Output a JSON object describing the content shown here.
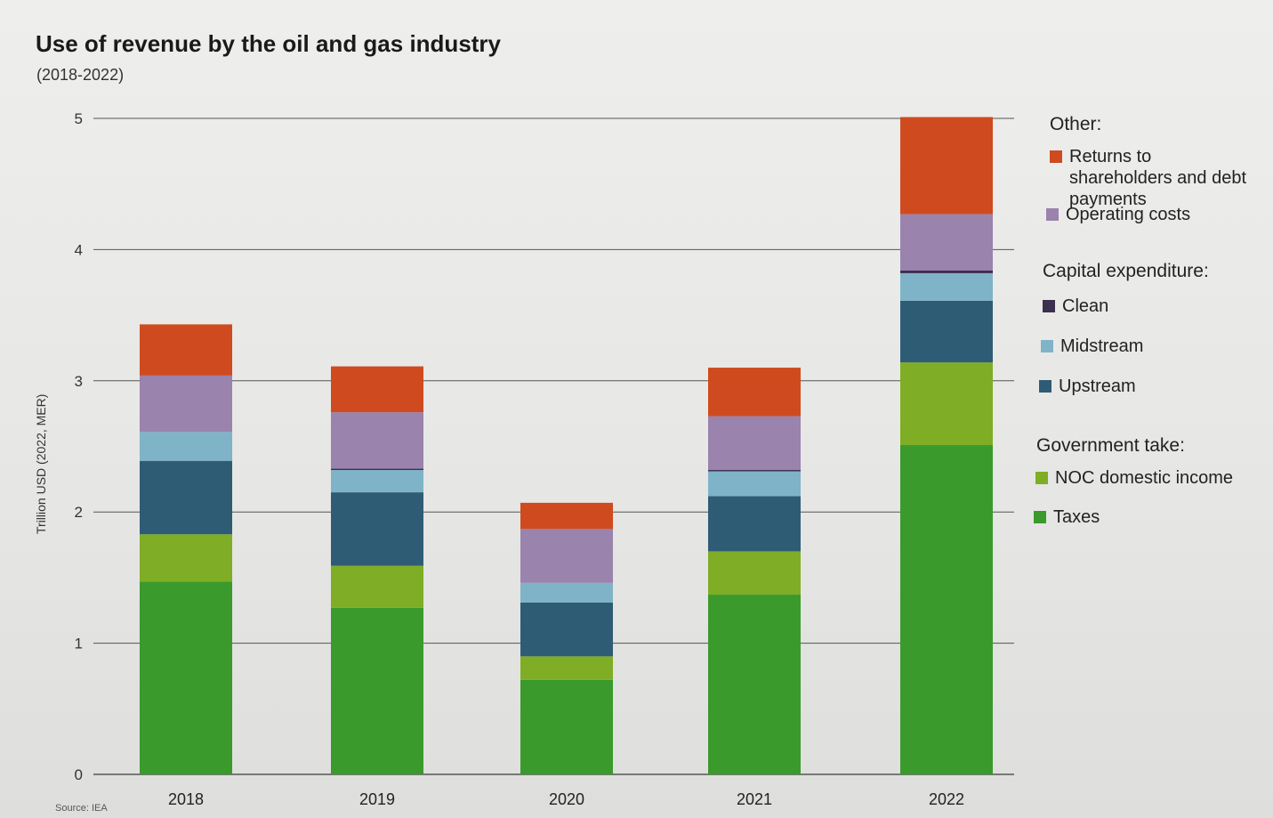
{
  "header": {
    "title": "Use of revenue by the oil and gas industry",
    "subtitle": "(2018-2022)"
  },
  "source": "Source: IEA",
  "legend": {
    "groups": [
      {
        "title": "Other:",
        "items": [
          "Returns to shareholders and debt payments",
          "Operating costs"
        ]
      },
      {
        "title": "Capital expenditure:",
        "items": [
          "Clean",
          "Midstream",
          "Upstream"
        ]
      },
      {
        "title": "Government take:",
        "items": [
          "NOC domestic income",
          "Taxes"
        ]
      }
    ]
  },
  "colors": {
    "Taxes": "#3a9a2c",
    "NOC domestic income": "#7fad26",
    "Upstream": "#2f5c75",
    "Midstream": "#7fb3c8",
    "Clean": "#3d2f4f",
    "Operating costs": "#9a83ad",
    "Returns to shareholders and debt payments": "#cf4b1f"
  },
  "chart_data": {
    "type": "bar",
    "stacked": true,
    "title": "Use of revenue by the oil and gas industry",
    "subtitle": "(2018-2022)",
    "xlabel": "",
    "ylabel": "Trillion USD (2022, MER)",
    "ylim": [
      0,
      5
    ],
    "yticks": [
      0,
      1,
      2,
      3,
      4,
      5
    ],
    "categories": [
      "2018",
      "2019",
      "2020",
      "2021",
      "2022"
    ],
    "series": [
      {
        "name": "Taxes",
        "values": [
          1.47,
          1.27,
          0.72,
          1.37,
          2.51
        ]
      },
      {
        "name": "NOC domestic income",
        "values": [
          0.36,
          0.32,
          0.18,
          0.33,
          0.63
        ]
      },
      {
        "name": "Upstream",
        "values": [
          0.56,
          0.56,
          0.41,
          0.42,
          0.47
        ]
      },
      {
        "name": "Midstream",
        "values": [
          0.22,
          0.17,
          0.15,
          0.19,
          0.21
        ]
      },
      {
        "name": "Clean",
        "values": [
          0.0,
          0.01,
          0.0,
          0.01,
          0.02
        ]
      },
      {
        "name": "Operating costs",
        "values": [
          0.43,
          0.43,
          0.41,
          0.41,
          0.43
        ]
      },
      {
        "name": "Returns to shareholders and debt payments",
        "values": [
          0.39,
          0.35,
          0.2,
          0.37,
          0.74
        ]
      }
    ],
    "grid": true,
    "legend_position": "right"
  }
}
